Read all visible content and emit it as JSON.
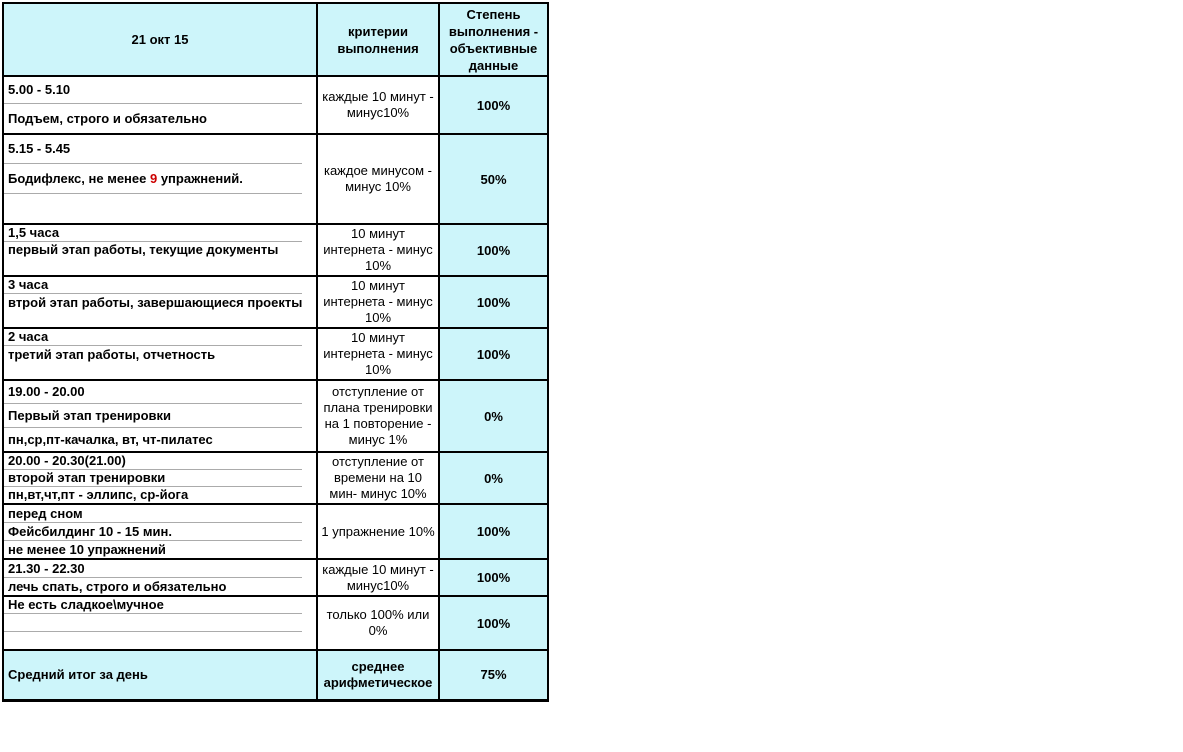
{
  "colors": {
    "highlight_cyan": "#cdf5fa",
    "border_black": "#000000",
    "divider_gray": "#ababab",
    "red_accent": "#cc0000",
    "text": "#000000",
    "page_background": "#ffffff"
  },
  "table": {
    "header": {
      "date": "21 окт 15",
      "criteria": "критерии выполнения",
      "result": "Степень выполнения - объективные данные"
    },
    "rows": [
      {
        "lines": [
          "5.00 - 5.10",
          "Подъем, строго и обязательно"
        ],
        "criteria": "каждые 10 минут - минус10%",
        "result": "100%"
      },
      {
        "lines": [
          "5.15 - 5.45",
          "",
          ""
        ],
        "line2": {
          "pre": "Бодифлекс, не менее ",
          "red": "9",
          "post": " упражнений."
        },
        "criteria": "каждое минусом - минус 10%",
        "result": "50%"
      },
      {
        "lines": [
          "1,5 часа",
          "первый этап работы, текущие документы"
        ],
        "criteria": "10 минут интернета - минус 10%",
        "result": "100%"
      },
      {
        "lines": [
          "3 часа",
          "втрой этап работы, завершающиеся проекты"
        ],
        "criteria": "10 минут интернета - минус 10%",
        "result": "100%"
      },
      {
        "lines": [
          "2 часа",
          "третий этап работы, отчетность"
        ],
        "criteria": "10 минут интернета - минус 10%",
        "result": "100%"
      },
      {
        "lines": [
          "19.00 - 20.00",
          "Первый этап тренировки",
          "пн,ср,пт-качалка, вт, чт-пилатес"
        ],
        "criteria": "отступление от плана тренировки на 1 повторение - минус 1%",
        "result": "0%"
      },
      {
        "lines": [
          "20.00 - 20.30(21.00)",
          "второй этап тренировки",
          "пн,вт,чт,пт - эллипс, ср-йога"
        ],
        "criteria": "отступление от времени на 10 мин- минус 10%",
        "result": "0%"
      },
      {
        "lines": [
          "перед сном",
          "Фейсбилдинг 10 - 15 мин.",
          "не менее 10 упражнений"
        ],
        "criteria": "1 упражнение 10%",
        "result": "100%"
      },
      {
        "lines": [
          "21.30 - 22.30",
          "лечь спать, строго и обязательно"
        ],
        "criteria": "каждые 10 минут - минус10%",
        "result": "100%"
      },
      {
        "lines": [
          "Не есть сладкое\\мучное",
          "",
          ""
        ],
        "criteria": "только 100% или 0%",
        "result": "100%"
      }
    ],
    "footer": {
      "label": "Средний итог за день",
      "criteria": "среднее арифметическое",
      "result": "75%"
    }
  }
}
